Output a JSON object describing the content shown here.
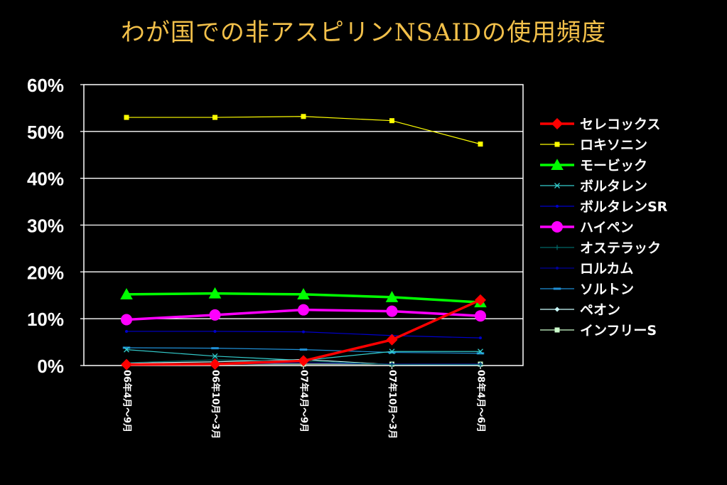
{
  "page": {
    "title": "わが国での非アスピリンNSAIDの使用頻度"
  },
  "chart_data": {
    "type": "line",
    "title": "わが国での非アスピリンNSAIDの使用頻度",
    "categories": [
      "06年4月～9月",
      "06年10月～3月",
      "07年4月～9月",
      "07年10月～3月",
      "08年4月～6月"
    ],
    "ylim": [
      0,
      60
    ],
    "yticks": [
      "0%",
      "10%",
      "20%",
      "30%",
      "40%",
      "50%",
      "60%"
    ],
    "grid": true,
    "legend_position": "right",
    "series": [
      {
        "name": "セレコックス",
        "color": "#ff0000",
        "marker": "diamond",
        "width": 3.5,
        "values": [
          0.2,
          0.3,
          1.0,
          5.5,
          14.0
        ]
      },
      {
        "name": "ロキソニン",
        "color": "#ffff00",
        "marker": "square",
        "width": 1.2,
        "values": [
          53.0,
          53.0,
          53.2,
          52.3,
          47.3
        ]
      },
      {
        "name": "モービック",
        "color": "#00ff00",
        "marker": "triangle",
        "width": 3.5,
        "values": [
          15.2,
          15.4,
          15.2,
          14.6,
          13.5
        ]
      },
      {
        "name": "ボルタレン",
        "color": "#33cccc",
        "marker": "cross",
        "width": 1.2,
        "values": [
          3.4,
          2.0,
          1.1,
          3.0,
          3.0
        ]
      },
      {
        "name": "ボルタレンSR",
        "color": "#0000cc",
        "marker": "dot",
        "width": 1.2,
        "values": [
          7.3,
          7.3,
          7.2,
          6.4,
          5.9
        ]
      },
      {
        "name": "ハイペン",
        "color": "#ff00ff",
        "marker": "circle",
        "width": 3.5,
        "values": [
          9.8,
          10.8,
          11.9,
          11.6,
          10.6
        ]
      },
      {
        "name": "オステラック",
        "color": "#006666",
        "marker": "plus",
        "width": 1.2,
        "values": [
          0.6,
          1.2,
          1.0,
          0.2,
          0.2
        ]
      },
      {
        "name": "ロルカム",
        "color": "#000099",
        "marker": "dot",
        "width": 1.2,
        "values": [
          0.1,
          0.2,
          0.6,
          0.3,
          0.3
        ]
      },
      {
        "name": "ソルトン",
        "color": "#1f8fd6",
        "marker": "dash",
        "width": 1.2,
        "values": [
          3.8,
          3.7,
          3.4,
          2.8,
          2.6
        ]
      },
      {
        "name": "ペオン",
        "color": "#ccffff",
        "marker": "diamond",
        "width": 1.2,
        "values": [
          0.5,
          0.8,
          1.3,
          0.2,
          0.1
        ]
      },
      {
        "name": "インフリーS",
        "color": "#ccffcc",
        "marker": "square",
        "width": 1.2,
        "values": [
          0.3,
          0.3,
          0.3,
          0.3,
          0.3
        ]
      }
    ]
  }
}
